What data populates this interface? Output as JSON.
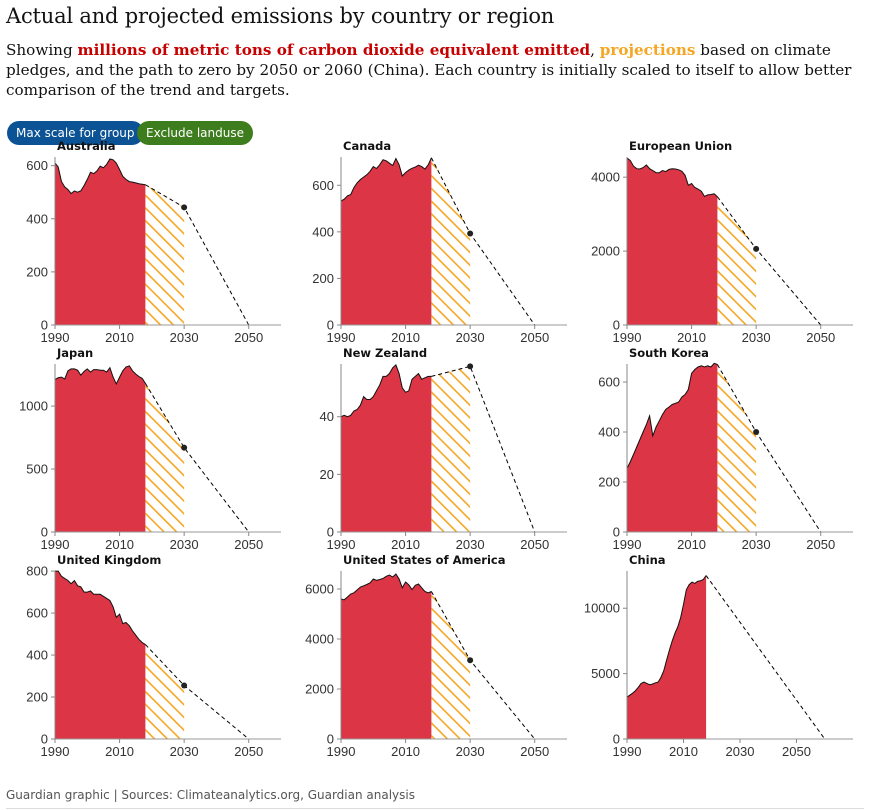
{
  "header": {
    "title": "Actual and projected emissions by country or region",
    "subtitle_pre": "Showing ",
    "subtitle_red": "millions of metric tons of carbon dioxide equivalent emitted",
    "subtitle_comma": ", ",
    "subtitle_orange": "projections",
    "subtitle_post": " based on climate pledges, and the path to zero by 2050 or 2060 (China). Each country is initially scaled to itself to allow better comparison of the trend and targets."
  },
  "buttons": {
    "max_scale": "Max scale for group",
    "exclude_landuse": "Exclude landuse"
  },
  "footer": {
    "source": "Guardian graphic | Sources: Climateanalytics.org, Guardian analysis"
  },
  "colors": {
    "actual": "#dc3545",
    "projection": "#f5a623",
    "path": "#000000",
    "axis": "#999999"
  },
  "chart_data": [
    {
      "type": "area",
      "name": "Australia",
      "title": "Australia",
      "x_ticks": [
        1990,
        2010,
        2030,
        2050
      ],
      "y_ticks": [
        0,
        200,
        400,
        600
      ],
      "ylim": [
        0,
        640
      ],
      "xlim": [
        1990,
        2060
      ],
      "actual": [
        [
          1990,
          610
        ],
        [
          1991,
          595
        ],
        [
          1992,
          540
        ],
        [
          1993,
          520
        ],
        [
          1994,
          510
        ],
        [
          1995,
          495
        ],
        [
          1996,
          505
        ],
        [
          1997,
          500
        ],
        [
          1998,
          505
        ],
        [
          1999,
          525
        ],
        [
          2000,
          548
        ],
        [
          2001,
          575
        ],
        [
          2002,
          570
        ],
        [
          2003,
          580
        ],
        [
          2004,
          598
        ],
        [
          2005,
          592
        ],
        [
          2006,
          605
        ],
        [
          2007,
          625
        ],
        [
          2008,
          622
        ],
        [
          2009,
          610
        ],
        [
          2010,
          585
        ],
        [
          2011,
          560
        ],
        [
          2012,
          548
        ],
        [
          2013,
          540
        ],
        [
          2014,
          538
        ],
        [
          2015,
          535
        ],
        [
          2016,
          532
        ],
        [
          2017,
          530
        ],
        [
          2018,
          528
        ]
      ],
      "projection_end": [
        2030,
        443
      ],
      "zero_year": 2050
    },
    {
      "type": "area",
      "name": "Canada",
      "title": "Canada",
      "x_ticks": [
        1990,
        2010,
        2030,
        2050
      ],
      "y_ticks": [
        0,
        200,
        400,
        600
      ],
      "ylim": [
        0,
        730
      ],
      "xlim": [
        1990,
        2060
      ],
      "actual": [
        [
          1990,
          532
        ],
        [
          1991,
          540
        ],
        [
          1992,
          555
        ],
        [
          1993,
          560
        ],
        [
          1994,
          590
        ],
        [
          1995,
          610
        ],
        [
          1996,
          625
        ],
        [
          1997,
          635
        ],
        [
          1998,
          645
        ],
        [
          1999,
          660
        ],
        [
          2000,
          680
        ],
        [
          2001,
          672
        ],
        [
          2002,
          688
        ],
        [
          2003,
          710
        ],
        [
          2004,
          705
        ],
        [
          2005,
          695
        ],
        [
          2006,
          685
        ],
        [
          2007,
          715
        ],
        [
          2008,
          688
        ],
        [
          2009,
          640
        ],
        [
          2010,
          655
        ],
        [
          2011,
          665
        ],
        [
          2012,
          673
        ],
        [
          2013,
          678
        ],
        [
          2014,
          686
        ],
        [
          2015,
          680
        ],
        [
          2016,
          670
        ],
        [
          2017,
          688
        ],
        [
          2018,
          718
        ]
      ],
      "projection_end": [
        2030,
        393
      ],
      "zero_year": 2050
    },
    {
      "type": "area",
      "name": "European Union",
      "title": "European Union",
      "x_ticks": [
        1990,
        2010,
        2030,
        2050
      ],
      "y_ticks": [
        0,
        2000,
        4000
      ],
      "ylim": [
        0,
        4600
      ],
      "xlim": [
        1990,
        2060
      ],
      "actual": [
        [
          1990,
          4520
        ],
        [
          1991,
          4450
        ],
        [
          1992,
          4300
        ],
        [
          1993,
          4230
        ],
        [
          1994,
          4220
        ],
        [
          1995,
          4260
        ],
        [
          1996,
          4330
        ],
        [
          1997,
          4230
        ],
        [
          1998,
          4180
        ],
        [
          1999,
          4120
        ],
        [
          2000,
          4120
        ],
        [
          2001,
          4180
        ],
        [
          2002,
          4150
        ],
        [
          2003,
          4210
        ],
        [
          2004,
          4230
        ],
        [
          2005,
          4220
        ],
        [
          2006,
          4200
        ],
        [
          2007,
          4160
        ],
        [
          2008,
          4050
        ],
        [
          2009,
          3780
        ],
        [
          2010,
          3830
        ],
        [
          2011,
          3720
        ],
        [
          2012,
          3680
        ],
        [
          2013,
          3620
        ],
        [
          2014,
          3480
        ],
        [
          2015,
          3520
        ],
        [
          2016,
          3530
        ],
        [
          2017,
          3550
        ],
        [
          2018,
          3470
        ]
      ],
      "projection_end": [
        2030,
        2060
      ],
      "zero_year": 2050
    },
    {
      "type": "area",
      "name": "Japan",
      "title": "Japan",
      "x_ticks": [
        1990,
        2010,
        2030,
        2050
      ],
      "y_ticks": [
        0,
        500,
        1000
      ],
      "ylim": [
        0,
        1350
      ],
      "xlim": [
        1990,
        2060
      ],
      "actual": [
        [
          1990,
          1210
        ],
        [
          1991,
          1225
        ],
        [
          1992,
          1230
        ],
        [
          1993,
          1215
        ],
        [
          1994,
          1280
        ],
        [
          1995,
          1295
        ],
        [
          1996,
          1295
        ],
        [
          1997,
          1285
        ],
        [
          1998,
          1245
        ],
        [
          1999,
          1275
        ],
        [
          2000,
          1295
        ],
        [
          2001,
          1270
        ],
        [
          2002,
          1290
        ],
        [
          2003,
          1290
        ],
        [
          2004,
          1285
        ],
        [
          2005,
          1285
        ],
        [
          2006,
          1270
        ],
        [
          2007,
          1305
        ],
        [
          2008,
          1230
        ],
        [
          2009,
          1175
        ],
        [
          2010,
          1230
        ],
        [
          2011,
          1280
        ],
        [
          2012,
          1310
        ],
        [
          2013,
          1320
        ],
        [
          2014,
          1280
        ],
        [
          2015,
          1255
        ],
        [
          2016,
          1235
        ],
        [
          2017,
          1220
        ],
        [
          2018,
          1180
        ]
      ],
      "projection_end": [
        2030,
        670
      ],
      "zero_year": 2050
    },
    {
      "type": "area",
      "name": "New Zealand",
      "title": "New Zealand",
      "x_ticks": [
        1990,
        2010,
        2030,
        2050
      ],
      "y_ticks": [
        0,
        20,
        40
      ],
      "ylim": [
        0,
        59
      ],
      "xlim": [
        1990,
        2060
      ],
      "actual": [
        [
          1990,
          40
        ],
        [
          1991,
          40.5
        ],
        [
          1992,
          40
        ],
        [
          1993,
          40.5
        ],
        [
          1994,
          42
        ],
        [
          1995,
          42.5
        ],
        [
          1996,
          44
        ],
        [
          1997,
          47
        ],
        [
          1998,
          46
        ],
        [
          1999,
          46
        ],
        [
          2000,
          47
        ],
        [
          2001,
          49
        ],
        [
          2002,
          51
        ],
        [
          2003,
          54
        ],
        [
          2004,
          54
        ],
        [
          2005,
          55
        ],
        [
          2006,
          57
        ],
        [
          2007,
          58
        ],
        [
          2008,
          55
        ],
        [
          2009,
          50
        ],
        [
          2010,
          48.5
        ],
        [
          2011,
          49
        ],
        [
          2012,
          53
        ],
        [
          2013,
          54
        ],
        [
          2014,
          55
        ],
        [
          2015,
          53
        ],
        [
          2016,
          53.5
        ],
        [
          2017,
          54
        ],
        [
          2018,
          54
        ]
      ],
      "projection_end": [
        2030,
        57.5
      ],
      "zero_year": 2050
    },
    {
      "type": "area",
      "name": "South Korea",
      "title": "South Korea",
      "x_ticks": [
        1990,
        2010,
        2030,
        2050
      ],
      "y_ticks": [
        0,
        200,
        400,
        600
      ],
      "ylim": [
        0,
        680
      ],
      "xlim": [
        1990,
        2060
      ],
      "actual": [
        [
          1990,
          255
        ],
        [
          1991,
          280
        ],
        [
          1992,
          310
        ],
        [
          1993,
          340
        ],
        [
          1994,
          370
        ],
        [
          1995,
          400
        ],
        [
          1996,
          430
        ],
        [
          1997,
          465
        ],
        [
          1998,
          385
        ],
        [
          1999,
          420
        ],
        [
          2000,
          445
        ],
        [
          2001,
          470
        ],
        [
          2002,
          490
        ],
        [
          2003,
          500
        ],
        [
          2004,
          510
        ],
        [
          2005,
          515
        ],
        [
          2006,
          520
        ],
        [
          2007,
          540
        ],
        [
          2008,
          550
        ],
        [
          2009,
          570
        ],
        [
          2010,
          635
        ],
        [
          2011,
          650
        ],
        [
          2012,
          660
        ],
        [
          2013,
          665
        ],
        [
          2014,
          660
        ],
        [
          2015,
          665
        ],
        [
          2016,
          660
        ],
        [
          2017,
          675
        ],
        [
          2018,
          670
        ]
      ],
      "projection_end": [
        2030,
        400
      ],
      "zero_year": 2050
    },
    {
      "type": "area",
      "name": "United Kingdom",
      "title": "United Kingdom",
      "x_ticks": [
        1990,
        2010,
        2030,
        2050
      ],
      "y_ticks": [
        0,
        200,
        400,
        600,
        800
      ],
      "ylim": [
        0,
        810
      ],
      "xlim": [
        1990,
        2060
      ],
      "actual": [
        [
          1990,
          800
        ],
        [
          1991,
          800
        ],
        [
          1992,
          775
        ],
        [
          1993,
          765
        ],
        [
          1994,
          755
        ],
        [
          1995,
          740
        ],
        [
          1996,
          755
        ],
        [
          1997,
          730
        ],
        [
          1998,
          725
        ],
        [
          1999,
          700
        ],
        [
          2000,
          700
        ],
        [
          2001,
          705
        ],
        [
          2002,
          690
        ],
        [
          2003,
          690
        ],
        [
          2004,
          690
        ],
        [
          2005,
          680
        ],
        [
          2006,
          670
        ],
        [
          2007,
          660
        ],
        [
          2008,
          630
        ],
        [
          2009,
          580
        ],
        [
          2010,
          595
        ],
        [
          2011,
          550
        ],
        [
          2012,
          555
        ],
        [
          2013,
          540
        ],
        [
          2014,
          515
        ],
        [
          2015,
          495
        ],
        [
          2016,
          475
        ],
        [
          2017,
          460
        ],
        [
          2018,
          450
        ]
      ],
      "projection_end": [
        2030,
        255
      ],
      "zero_year": 2050
    },
    {
      "type": "area",
      "name": "United States of America",
      "title": "United States of America",
      "x_ticks": [
        1990,
        2010,
        2030,
        2050
      ],
      "y_ticks": [
        0,
        2000,
        4000,
        6000
      ],
      "ylim": [
        0,
        6800
      ],
      "xlim": [
        1990,
        2060
      ],
      "actual": [
        [
          1990,
          5600
        ],
        [
          1991,
          5570
        ],
        [
          1992,
          5680
        ],
        [
          1993,
          5800
        ],
        [
          1994,
          5850
        ],
        [
          1995,
          5960
        ],
        [
          1996,
          6080
        ],
        [
          1997,
          6130
        ],
        [
          1998,
          6180
        ],
        [
          1999,
          6250
        ],
        [
          2000,
          6400
        ],
        [
          2001,
          6350
        ],
        [
          2002,
          6380
        ],
        [
          2003,
          6420
        ],
        [
          2004,
          6510
        ],
        [
          2005,
          6560
        ],
        [
          2006,
          6480
        ],
        [
          2007,
          6600
        ],
        [
          2008,
          6400
        ],
        [
          2009,
          6050
        ],
        [
          2010,
          6280
        ],
        [
          2011,
          6170
        ],
        [
          2012,
          5980
        ],
        [
          2013,
          6150
        ],
        [
          2014,
          6200
        ],
        [
          2015,
          6050
        ],
        [
          2016,
          5900
        ],
        [
          2017,
          5850
        ],
        [
          2018,
          5900
        ]
      ],
      "projection_end": [
        2030,
        3150
      ],
      "zero_year": 2050
    },
    {
      "type": "area",
      "name": "China",
      "title": "China",
      "x_ticks": [
        1990,
        2010,
        2030,
        2050
      ],
      "y_ticks": [
        0,
        5000,
        10000
      ],
      "ylim": [
        0,
        13000
      ],
      "xlim": [
        1990,
        2070
      ],
      "actual": [
        [
          1990,
          3200
        ],
        [
          1991,
          3350
        ],
        [
          1992,
          3500
        ],
        [
          1993,
          3700
        ],
        [
          1994,
          3950
        ],
        [
          1995,
          4250
        ],
        [
          1996,
          4350
        ],
        [
          1997,
          4250
        ],
        [
          1998,
          4150
        ],
        [
          1999,
          4200
        ],
        [
          2000,
          4300
        ],
        [
          2001,
          4350
        ],
        [
          2002,
          4700
        ],
        [
          2003,
          5200
        ],
        [
          2004,
          6000
        ],
        [
          2005,
          6800
        ],
        [
          2006,
          7500
        ],
        [
          2007,
          8100
        ],
        [
          2008,
          8600
        ],
        [
          2009,
          9300
        ],
        [
          2010,
          10300
        ],
        [
          2011,
          11400
        ],
        [
          2012,
          11800
        ],
        [
          2013,
          12000
        ],
        [
          2014,
          11900
        ],
        [
          2015,
          12050
        ],
        [
          2016,
          12100
        ],
        [
          2017,
          12200
        ],
        [
          2018,
          12500
        ]
      ],
      "projection_end": null,
      "zero_year": 2060
    }
  ]
}
